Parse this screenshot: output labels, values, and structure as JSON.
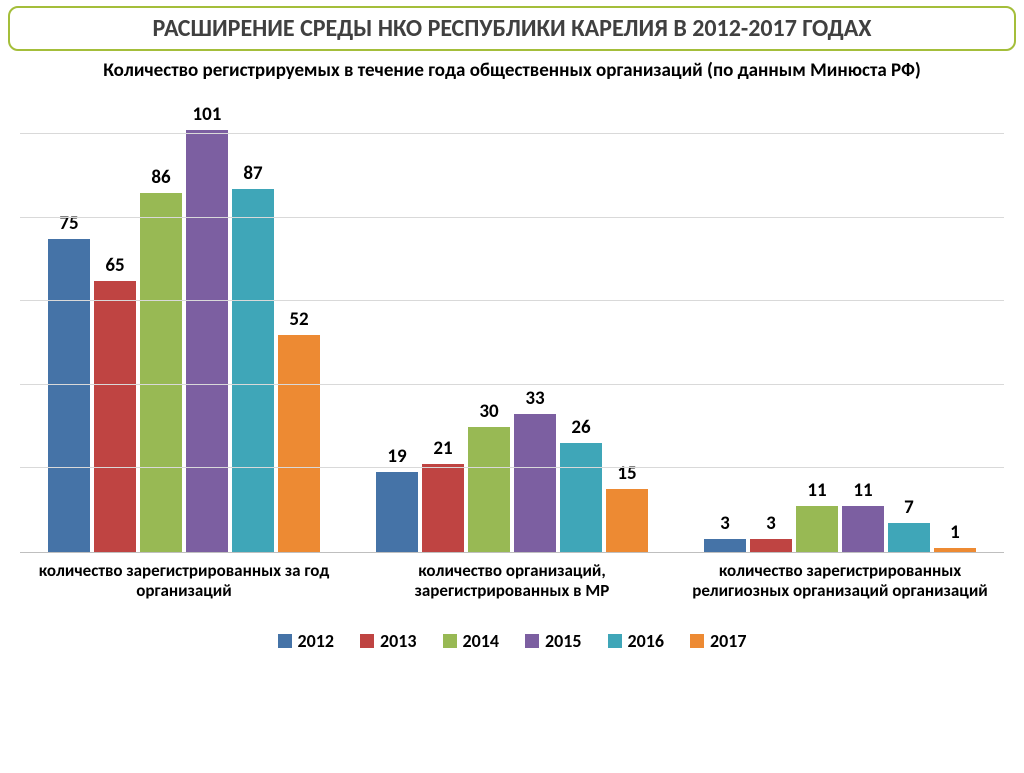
{
  "title": "РАСШИРЕНИЕ СРЕДЫ НКО РЕСПУБЛИКИ КАРЕЛИЯ В 2012-2017 ГОДАХ",
  "title_fontsize": 24,
  "title_color": "#404040",
  "title_border_color": "#a4be3a",
  "subtitle": "Количество  регистрируемых  в течение года общественных организаций  (по данным Минюста РФ)",
  "subtitle_fontsize": 19,
  "chart": {
    "type": "grouped-bar",
    "ymax": 110,
    "gridlines": [
      20,
      40,
      60,
      80,
      100
    ],
    "grid_color": "#d9d9d9",
    "axis_color": "#bfbfbf",
    "background_color": "#ffffff",
    "series": [
      {
        "label": "2012",
        "color": "#4573a7"
      },
      {
        "label": "2013",
        "color": "#bf4442"
      },
      {
        "label": "2014",
        "color": "#98b954"
      },
      {
        "label": "2015",
        "color": "#7c5fa1"
      },
      {
        "label": "2016",
        "color": "#3fa6b8"
      },
      {
        "label": "2017",
        "color": "#ed8a33"
      }
    ],
    "groups": [
      {
        "label": "количество зарегистрированных за год организаций",
        "values": [
          75,
          65,
          86,
          101,
          87,
          52
        ]
      },
      {
        "label": "количество организаций, зарегистрированных в МР",
        "values": [
          19,
          21,
          30,
          33,
          26,
          15
        ]
      },
      {
        "label": "количество зарегистрированных религиозных организаций организаций",
        "values": [
          3,
          3,
          11,
          11,
          7,
          1
        ]
      }
    ],
    "value_label_fontsize": 19,
    "xlabel_fontsize": 17,
    "legend_fontsize": 18
  }
}
